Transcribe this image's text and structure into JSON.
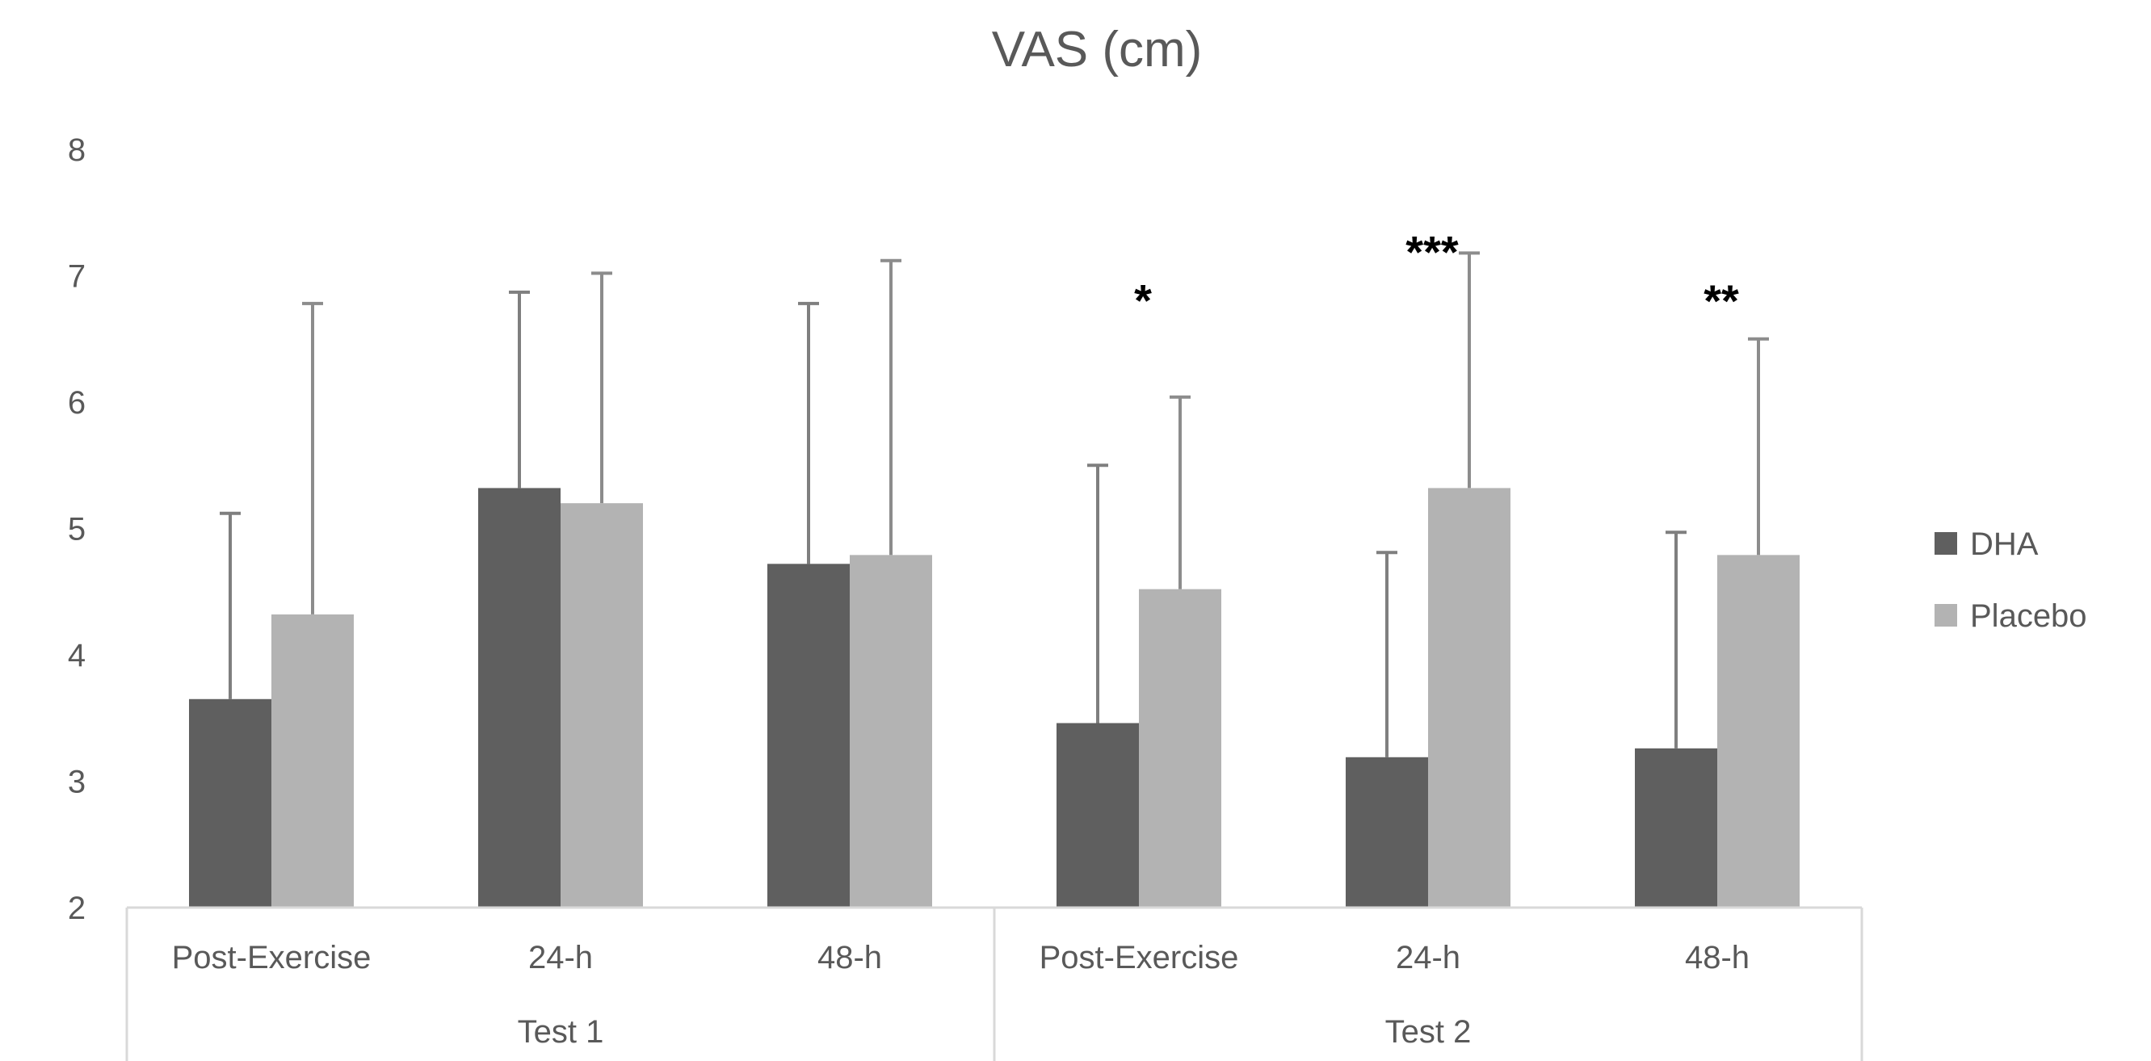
{
  "chart_data": {
    "type": "bar",
    "title": "VAS (cm)",
    "xlabel": "",
    "ylabel": "",
    "ylim": [
      2,
      8
    ],
    "yticks": [
      2,
      3,
      4,
      5,
      6,
      7,
      8
    ],
    "grid": false,
    "legend_position": "right",
    "categories": [
      "Post-Exercise",
      "24-h",
      "48-h",
      "Post-Exercise",
      "24-h",
      "48-h"
    ],
    "groups": [
      {
        "label": "Test 1",
        "categories": [
          "Post-Exercise",
          "24-h",
          "48-h"
        ]
      },
      {
        "label": "Test 2",
        "categories": [
          "Post-Exercise",
          "24-h",
          "48-h"
        ]
      }
    ],
    "series": [
      {
        "name": "DHA",
        "color": "#5f5f5f",
        "values": [
          3.65,
          5.32,
          4.72,
          3.46,
          3.19,
          3.26
        ],
        "error_upper": [
          5.12,
          6.87,
          6.78,
          5.5,
          4.81,
          4.97
        ]
      },
      {
        "name": "Placebo",
        "color": "#b3b3b3",
        "values": [
          4.32,
          5.2,
          4.79,
          4.52,
          5.32,
          4.79
        ],
        "error_upper": [
          6.78,
          7.02,
          7.12,
          6.04,
          7.18,
          6.5
        ]
      }
    ],
    "annotations": [
      "",
      "",
      "",
      "*",
      "***",
      "**"
    ]
  }
}
